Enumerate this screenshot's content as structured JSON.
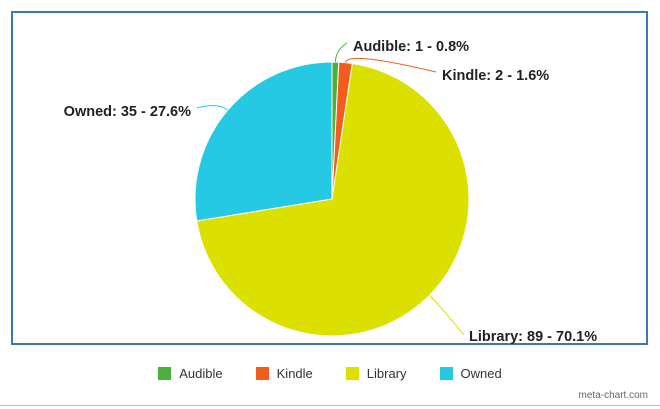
{
  "chart_data": {
    "type": "pie",
    "title": "",
    "slices": [
      {
        "name": "Audible",
        "value": 1,
        "percent": 0.8,
        "label": "Audible: 1 - 0.8%",
        "color": "#4caf3e"
      },
      {
        "name": "Kindle",
        "value": 2,
        "percent": 1.6,
        "label": "Kindle: 2 - 1.6%",
        "color": "#f25d1d"
      },
      {
        "name": "Library",
        "value": 89,
        "percent": 70.1,
        "label": "Library: 89 - 70.1%",
        "color": "#dbe000"
      },
      {
        "name": "Owned",
        "value": 35,
        "percent": 27.6,
        "label": "Owned: 35 - 27.6%",
        "color": "#26c9e3"
      }
    ],
    "legend_position": "bottom"
  },
  "legend": {
    "items": [
      {
        "label": "Audible",
        "color": "#4caf3e"
      },
      {
        "label": "Kindle",
        "color": "#f25d1d"
      },
      {
        "label": "Library",
        "color": "#dbe000"
      },
      {
        "label": "Owned",
        "color": "#26c9e3"
      }
    ]
  },
  "credit": "meta-chart.com"
}
